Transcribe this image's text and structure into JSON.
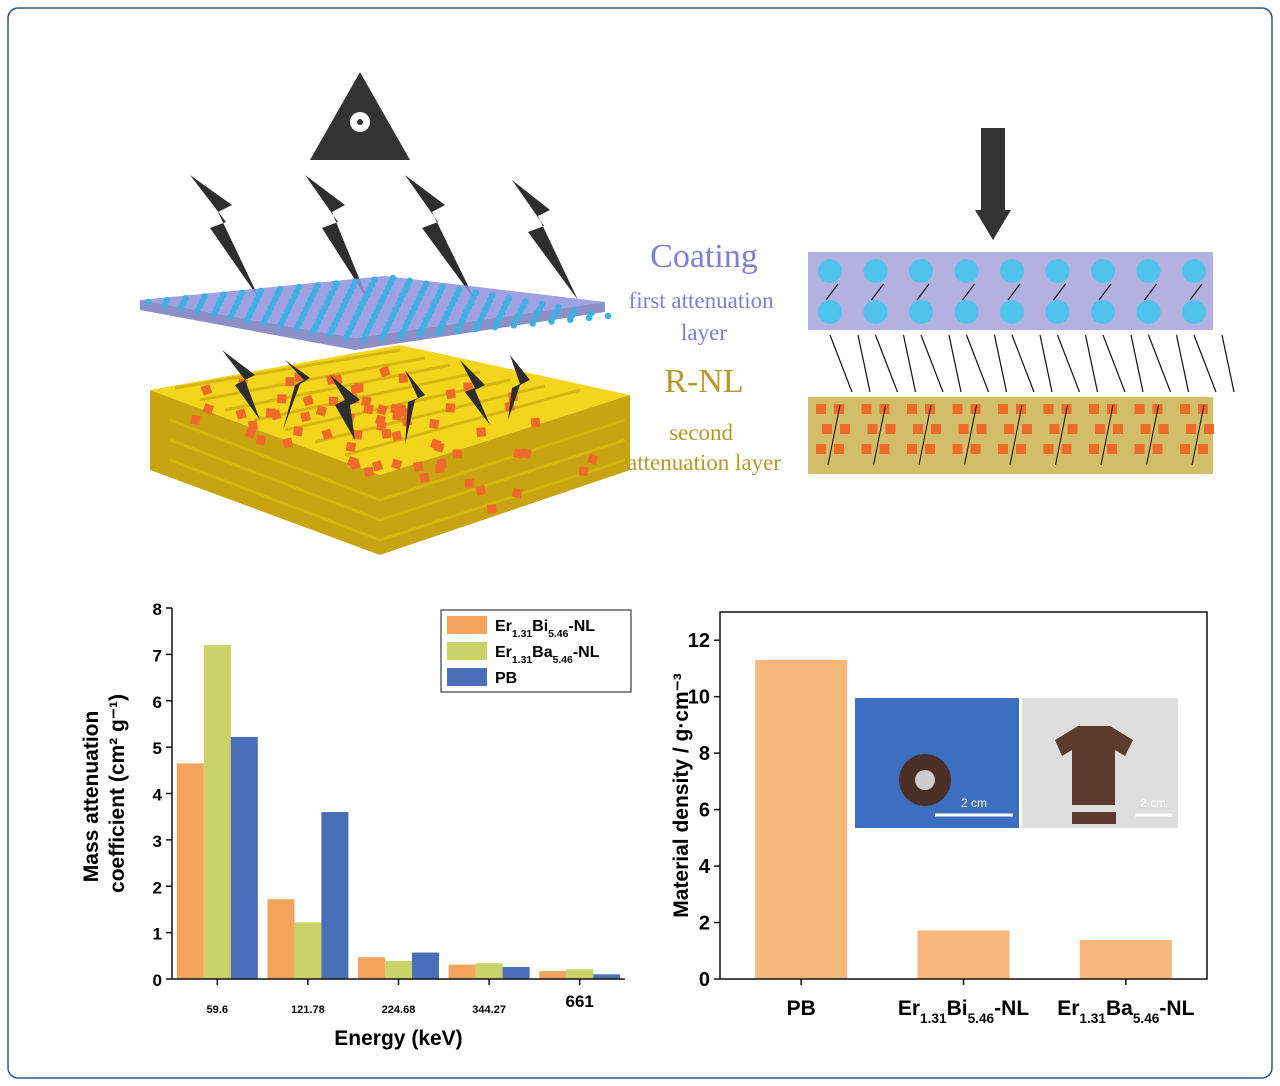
{
  "diagram": {
    "coating_title": "Coating",
    "coating_subtitle": "first attenuation layer",
    "rnl_title": "R-NL",
    "rnl_subtitle": "second attenuation layer"
  },
  "insets": {
    "scale_bars": [
      "2 cm",
      "2 cm"
    ]
  },
  "chart_data": [
    {
      "type": "bar",
      "xlabel": "Energy (keV)",
      "ylabel": "Mass attenuation coefficient (cm² g⁻¹)",
      "categories": [
        "59.6",
        "121.78",
        "224.68",
        "344.27",
        "661"
      ],
      "series": [
        {
          "name": "Er1.31Bi5.46-NL",
          "color": "#f5a45d",
          "values": [
            4.65,
            1.72,
            0.47,
            0.31,
            0.17
          ]
        },
        {
          "name": "Er1.31Ba5.46-NL",
          "color": "#c9d36a",
          "values": [
            7.2,
            1.22,
            0.39,
            0.34,
            0.21
          ]
        },
        {
          "name": "PB",
          "color": "#4a6fb8",
          "values": [
            5.22,
            3.6,
            0.57,
            0.26,
            0.1
          ]
        }
      ],
      "ylim": [
        0,
        8
      ],
      "yticks": [
        0,
        1,
        2,
        3,
        4,
        5,
        6,
        7,
        8
      ],
      "legend": "top-right",
      "frame": false
    },
    {
      "type": "bar",
      "ylabel": "Material density / g·cm⁻³",
      "categories": [
        "PB",
        "Er1.31Bi5.46-NL",
        "Er1.31Ba5.46-NL"
      ],
      "values": [
        11.3,
        1.72,
        1.38
      ],
      "color": "#f7b77a",
      "ylim": [
        0,
        13
      ],
      "yticks": [
        0,
        2,
        4,
        6,
        8,
        10,
        12
      ],
      "frame": true
    }
  ]
}
